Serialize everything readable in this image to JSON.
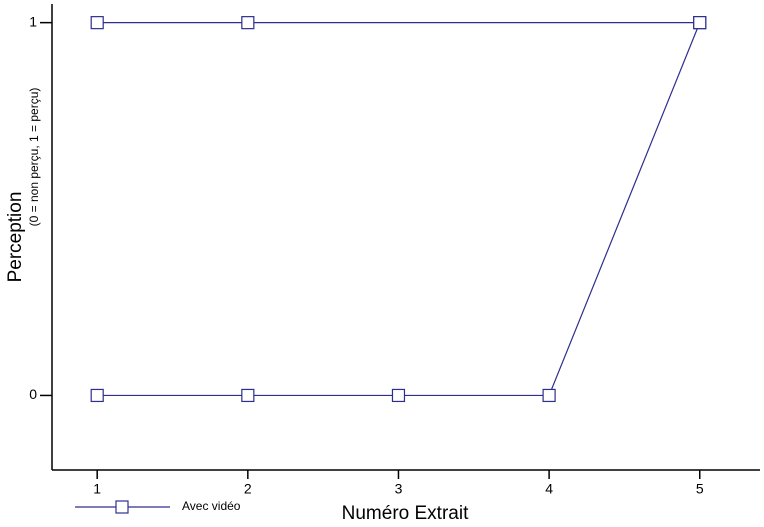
{
  "chart_data": {
    "type": "line",
    "x_label": "Numéro Extrait",
    "y_label": "Perception",
    "y_label_note": "(0 = non perçu, 1 = perçu)",
    "x": [
      1,
      2,
      5,
      null,
      1,
      2,
      3,
      4,
      5
    ],
    "series": [
      {
        "name": "Avec vidéo",
        "color": "#2e2e8f",
        "values": [
          1,
          1,
          1,
          null,
          0,
          0,
          0,
          0,
          1
        ]
      }
    ],
    "xlim": [
      0.7,
      5.4
    ],
    "ylim": [
      -0.2,
      1.05
    ],
    "xticks": [
      1,
      2,
      3,
      4,
      5
    ],
    "yticks": [
      0,
      1
    ],
    "grid": false,
    "legend": "bottom-left",
    "marker": "square"
  }
}
